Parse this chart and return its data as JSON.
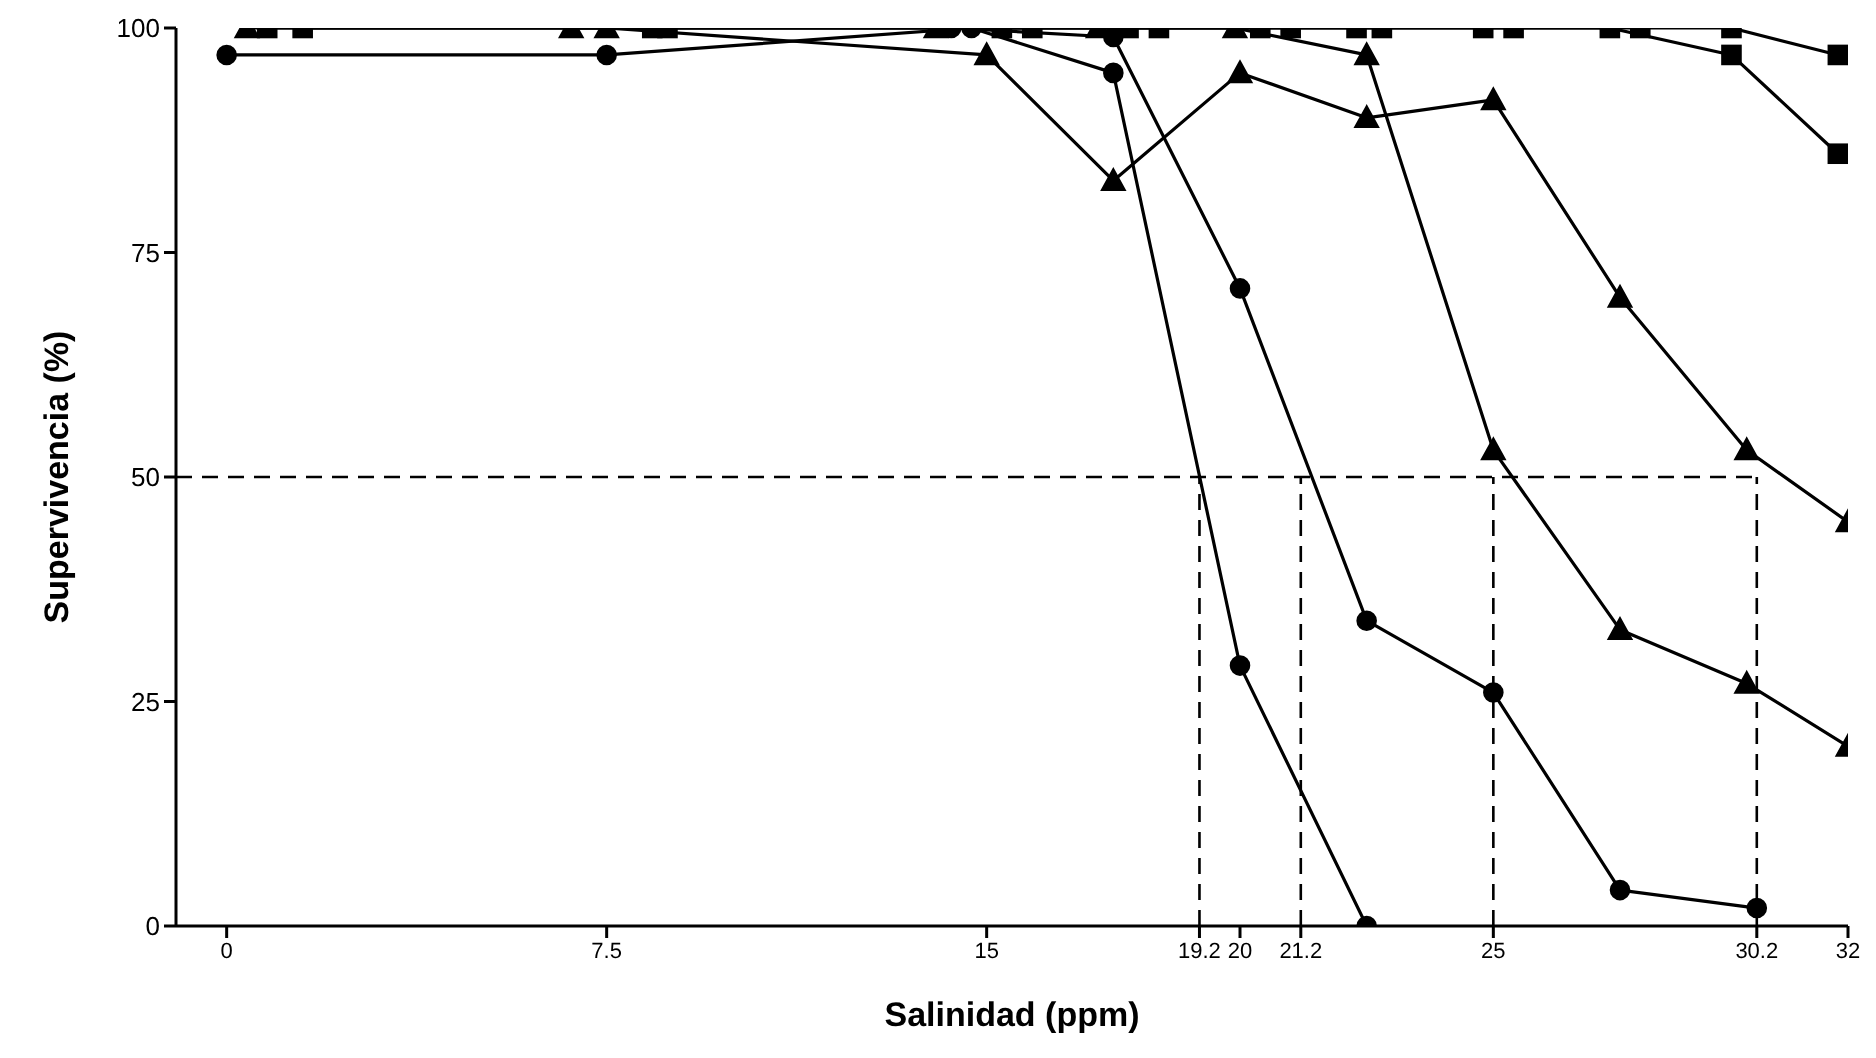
{
  "chart_data": {
    "type": "line",
    "xlabel": "Salinidad (ppm)",
    "ylabel": "Supervivencia (%)",
    "xlim": [
      -1,
      32
    ],
    "xticks": [
      0,
      7.5,
      15,
      19.2,
      20,
      21.2,
      25,
      30.2,
      32
    ],
    "ylim": [
      0,
      100
    ],
    "yticks": [
      0,
      25,
      50,
      75,
      100
    ],
    "grid": false,
    "legend": false,
    "series": [
      {
        "color": "#000000",
        "marker": "circle",
        "x": [
          0,
          7.5,
          14.7,
          17.5,
          20,
          22.5
        ],
        "values": [
          97,
          97,
          100,
          95,
          29,
          0
        ]
      },
      {
        "color": "#000000",
        "marker": "circle",
        "x": [
          14.3,
          17.5,
          20,
          22.5,
          25,
          27.5,
          30.2
        ],
        "values": [
          100,
          99,
          71,
          34,
          26,
          4,
          2
        ]
      },
      {
        "color": "#000000",
        "marker": "triangle",
        "x": [
          6.8,
          14,
          17.2,
          19.9,
          22.5,
          25,
          27.5,
          30,
          32
        ],
        "values": [
          100,
          100,
          100,
          100,
          97,
          53,
          33,
          27,
          20
        ]
      },
      {
        "color": "#000000",
        "marker": "triangle",
        "x": [
          0.4,
          7.5,
          15,
          17.5,
          20,
          22.5,
          25,
          27.5,
          30,
          32
        ],
        "values": [
          100,
          100,
          97,
          83,
          95,
          90,
          92,
          70,
          53,
          45
        ]
      },
      {
        "color": "#000000",
        "marker": "square",
        "x": [
          0.8,
          8.4,
          15.3,
          17.8,
          20.4,
          22.3,
          24.8,
          27.3,
          29.7,
          31.8
        ],
        "values": [
          100,
          100,
          100,
          100,
          100,
          100,
          100,
          100,
          97,
          86
        ]
      },
      {
        "color": "#000000",
        "marker": "square",
        "x": [
          1.5,
          8.7,
          15.9,
          18.4,
          21,
          22.8,
          25.4,
          27.9,
          29.7,
          31.8
        ],
        "values": [
          100,
          100,
          100,
          100,
          100,
          100,
          100,
          100,
          100,
          97
        ]
      }
    ],
    "ref_lines": [
      {
        "axis": "y",
        "value": 50,
        "line_style": "dashed",
        "color": "#000000"
      },
      {
        "axis": "x",
        "value": 19.2,
        "line_style": "dashed",
        "color": "#000000"
      },
      {
        "axis": "x",
        "value": 21.2,
        "line_style": "dashed",
        "color": "#000000"
      },
      {
        "axis": "x",
        "value": 25,
        "line_style": "dashed",
        "color": "#000000"
      },
      {
        "axis": "x",
        "value": 30.2,
        "line_style": "dashed",
        "color": "#000000"
      }
    ]
  }
}
